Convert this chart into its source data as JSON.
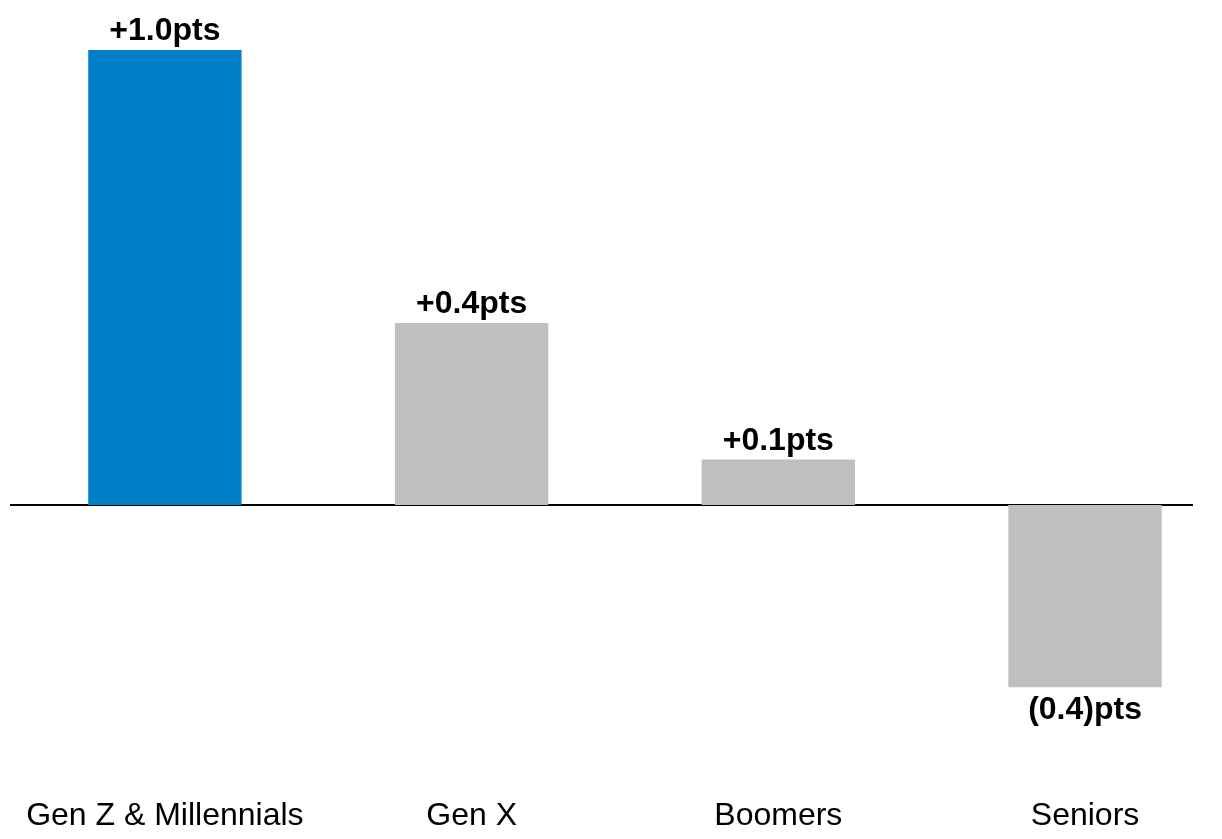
{
  "chart_data": {
    "type": "bar",
    "categories": [
      "Gen Z & Millennials",
      "Gen X",
      "Boomers",
      "Seniors"
    ],
    "values": [
      1.0,
      0.4,
      0.1,
      -0.4
    ],
    "colors": [
      "#007fc6",
      "#bfbfbf",
      "#bfbfbf",
      "#bfbfbf"
    ],
    "value_labels": [
      "+1.0pts",
      "+0.4pts",
      "+0.1pts",
      "(0.4)pts"
    ],
    "tick_labels": "x"
  }
}
